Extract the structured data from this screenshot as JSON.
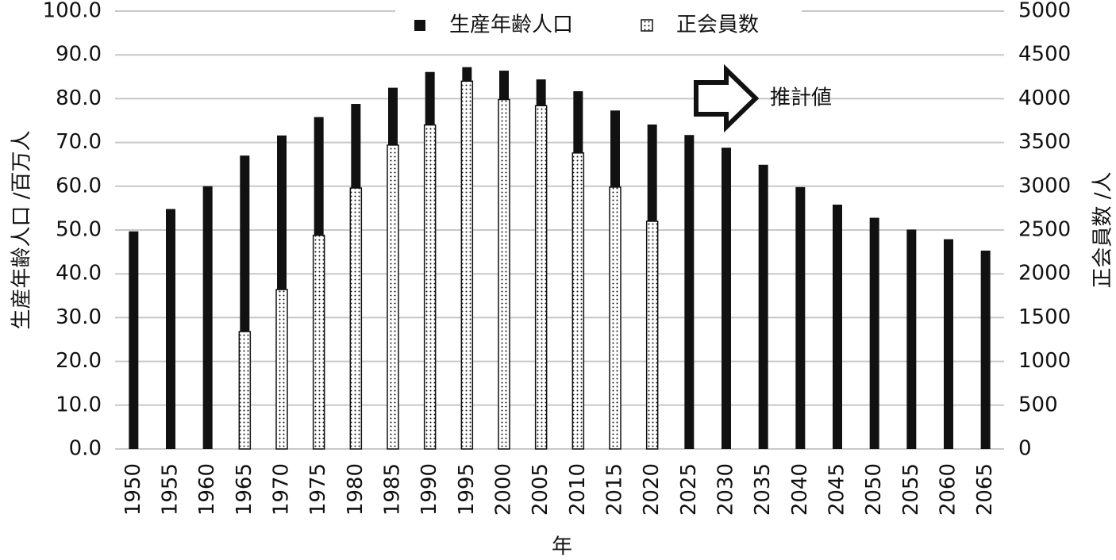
{
  "chart_data": {
    "type": "bar",
    "x_label": "年",
    "y_label": "生産年齢人口 /百万人",
    "y2_label": "正会員数 /人",
    "annotation": "推計値",
    "categories": [
      "1950",
      "1955",
      "1960",
      "1965",
      "1970",
      "1975",
      "1980",
      "1985",
      "1990",
      "1995",
      "2000",
      "2005",
      "2010",
      "2015",
      "2020",
      "2025",
      "2030",
      "2035",
      "2040",
      "2045",
      "2050",
      "2055",
      "2060",
      "2065"
    ],
    "series": [
      {
        "name": "生産年齢人口",
        "color": "#111111",
        "values": [
          49.7,
          54.8,
          60.0,
          67.0,
          71.6,
          75.8,
          78.8,
          82.5,
          86.1,
          87.2,
          86.4,
          84.4,
          81.7,
          77.3,
          74.1,
          71.7,
          68.8,
          64.9,
          59.8,
          55.8,
          52.8,
          50.1,
          47.9,
          45.3
        ]
      },
      {
        "name": "正会員数",
        "color": "#111111",
        "pattern": "dots",
        "axis": "y2",
        "values": [
          null,
          null,
          null,
          1340,
          1820,
          2440,
          2980,
          3470,
          3700,
          4200,
          3990,
          3920,
          3380,
          2990,
          2600,
          null,
          null,
          null,
          null,
          null,
          null,
          null,
          null,
          null
        ]
      }
    ],
    "ylim": [
      0,
      100
    ],
    "yticks": [
      {
        "value": 0,
        "label": "0.0"
      },
      {
        "value": 10,
        "label": "10.0"
      },
      {
        "value": 20,
        "label": "20.0"
      },
      {
        "value": 30,
        "label": "30.0"
      },
      {
        "value": 40,
        "label": "40.0"
      },
      {
        "value": 50,
        "label": "50.0"
      },
      {
        "value": 60,
        "label": "60.0"
      },
      {
        "value": 70,
        "label": "70.0"
      },
      {
        "value": 80,
        "label": "80.0"
      },
      {
        "value": 90,
        "label": "90.0"
      },
      {
        "value": 100,
        "label": "100.0"
      }
    ],
    "y2lim": [
      0,
      5000
    ],
    "y2ticks": [
      0,
      500,
      1000,
      1500,
      2000,
      2500,
      3000,
      3500,
      4000,
      4500,
      5000
    ],
    "grid": true,
    "legend": "top"
  }
}
